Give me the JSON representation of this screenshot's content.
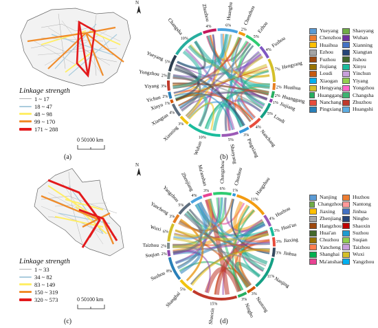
{
  "panels": {
    "a": {
      "label": "(a)"
    },
    "b": {
      "label": "(b)"
    },
    "c": {
      "label": "(c)"
    },
    "d": {
      "label": "(d)"
    }
  },
  "north_label": "N",
  "scale_bar": {
    "text": "0  50100 km"
  },
  "legend_a": {
    "title": "Linkage strength",
    "classes": [
      {
        "range": "1 ~ 17",
        "color": "#b0b0b0",
        "width": 1
      },
      {
        "range": "18 ~ 47",
        "color": "#aaccdd",
        "width": 2
      },
      {
        "range": "48 ~ 98",
        "color": "#ffee66",
        "width": 3
      },
      {
        "range": "99 ~ 170",
        "color": "#f08c2a",
        "width": 3
      },
      {
        "range": "171 ~ 288",
        "color": "#e31a1c",
        "width": 4
      }
    ]
  },
  "legend_c": {
    "title": "Linkage strength",
    "classes": [
      {
        "range": "1 ~ 33",
        "color": "#b0b0b0",
        "width": 1
      },
      {
        "range": "34 ~ 82",
        "color": "#aaccdd",
        "width": 2
      },
      {
        "range": "83 ~ 149",
        "color": "#ffee66",
        "width": 3
      },
      {
        "range": "150 ~ 319",
        "color": "#f08c2a",
        "width": 3
      },
      {
        "range": "320 ~ 573",
        "color": "#e31a1c",
        "width": 4
      }
    ]
  },
  "chord_b": {
    "cities": [
      "Zhuzhou",
      "Huanghu",
      "Chenzhou",
      "Ezhou",
      "Fuzhou",
      "Hengyang",
      "Huaihua",
      "Huanggang",
      "Jiujiang",
      "Loudi",
      "Nanchang",
      "Pingxiang",
      "Shaoyang",
      "Wuhan",
      "Xianning",
      "Xiangtan",
      "Xinyu",
      "Yichun",
      "Yiyang",
      "Yongzhou",
      "Yueyang",
      "Changsha"
    ],
    "percents": [
      "4%",
      "6%",
      "2%",
      "5%",
      "4%",
      "7%",
      "2%",
      "2%",
      "1%",
      "5%",
      "4%",
      "3%",
      "5%",
      "10%",
      "3%",
      "4%",
      "1%",
      "2%",
      "3%",
      "2%",
      "5%",
      "10%"
    ],
    "colors": [
      "#c2185b",
      "#4aa3df",
      "#f39c12",
      "#2ecc71",
      "#7e57c2",
      "#d4c02a",
      "#e67e22",
      "#27ae60",
      "#8e44ad",
      "#16a085",
      "#e74c3c",
      "#3498db",
      "#9b59b6",
      "#1abc9c",
      "#f1c40f",
      "#5d6d7e",
      "#d35400",
      "#2980b9",
      "#c0392b",
      "#7f8c8d",
      "#2c3e50",
      "#27ae9f"
    ]
  },
  "chord_d": {
    "cities": [
      "Ma'anshan",
      "Changzhou",
      "Chuzhou",
      "Hangzhou",
      "Huzhou",
      "Huai'an",
      "Jiaxing",
      "Jinhua",
      "Nanjing",
      "Nantong",
      "Ningbo",
      "Shaoxin",
      "Shanghai",
      "Suzhou",
      "Suqian",
      "Taizhou",
      "Wuxi",
      "Yancheng",
      "Yangzhou",
      "Zhenjiang"
    ],
    "percents": [
      "3%",
      "6%",
      "1%",
      "11%",
      "4%",
      "3%",
      "3%",
      "3%",
      "11%",
      "3%",
      "3%",
      "15%",
      "5%",
      "8%",
      "2%",
      "2%",
      "6%",
      "3%",
      "5%",
      "4%"
    ],
    "colors": [
      "#e84393",
      "#2ecc71",
      "#3498db",
      "#f39c12",
      "#9b59b6",
      "#1abc9c",
      "#e74c3c",
      "#34495e",
      "#16a085",
      "#d35400",
      "#27ae60",
      "#c0392b",
      "#f1c40f",
      "#2980b9",
      "#8e44ad",
      "#7f8c8d",
      "#d4c02a",
      "#e67e22",
      "#5d6d7e",
      "#4aa3df"
    ]
  },
  "legend_b": [
    {
      "name": "Yueyang",
      "color": "#5b9bd5"
    },
    {
      "name": "Shaoyang",
      "color": "#70ad47"
    },
    {
      "name": "Chenzhou",
      "color": "#ed7d31"
    },
    {
      "name": "Wuhan",
      "color": "#7030a0"
    },
    {
      "name": "Huaihua",
      "color": "#ffc000"
    },
    {
      "name": "Xianning",
      "color": "#4472c4"
    },
    {
      "name": "Ezhou",
      "color": "#a5a5a5"
    },
    {
      "name": "Xiangtan",
      "color": "#264478"
    },
    {
      "name": "Fuzhou",
      "color": "#9e480e"
    },
    {
      "name": "Jishou",
      "color": "#43682b"
    },
    {
      "name": "Jiujiang",
      "color": "#997300"
    },
    {
      "name": "Xinyu",
      "color": "#1abc9c"
    },
    {
      "name": "Loudi",
      "color": "#c55a11"
    },
    {
      "name": "Yinchun",
      "color": "#c9a0dc"
    },
    {
      "name": "Xiaogan",
      "color": "#00b0f0"
    },
    {
      "name": "Yiyang",
      "color": "#92d050"
    },
    {
      "name": "Hengyang",
      "color": "#d4c02a"
    },
    {
      "name": "Yongzhou",
      "color": "#ff66cc"
    },
    {
      "name": "Huanggang",
      "color": "#27ae60"
    },
    {
      "name": "Changsha",
      "color": "#3cb371"
    },
    {
      "name": "Nanchang",
      "color": "#e74c3c"
    },
    {
      "name": "Zhuzhou",
      "color": "#c0392b"
    },
    {
      "name": "Pingxiang",
      "color": "#2980b9"
    },
    {
      "name": "Huangshi",
      "color": "#5dade2"
    }
  ],
  "legend_d": [
    {
      "name": "Nanjing",
      "color": "#5b9bd5"
    },
    {
      "name": "Huzhou",
      "color": "#ed7d31"
    },
    {
      "name": "Changzhou",
      "color": "#70ad47"
    },
    {
      "name": "Nantong",
      "color": "#ff9999"
    },
    {
      "name": "Jiaxing",
      "color": "#ffc000"
    },
    {
      "name": "Jinhua",
      "color": "#4472c4"
    },
    {
      "name": "Zhenjiang",
      "color": "#a5a5a5"
    },
    {
      "name": "Ningbo",
      "color": "#264478"
    },
    {
      "name": "Hangzhou",
      "color": "#9e480e"
    },
    {
      "name": "Shaoxin",
      "color": "#c00000"
    },
    {
      "name": "Huai'an",
      "color": "#43682b"
    },
    {
      "name": "Suzhou",
      "color": "#1f9bd1"
    },
    {
      "name": "Chuzhou",
      "color": "#997300"
    },
    {
      "name": "Suqian",
      "color": "#92d050"
    },
    {
      "name": "Yancheng",
      "color": "#ff7f50"
    },
    {
      "name": "Taizhou",
      "color": "#c9a0dc"
    },
    {
      "name": "Shanghai",
      "color": "#00b050"
    },
    {
      "name": "Wuxi",
      "color": "#d4c02a"
    },
    {
      "name": "Ma'anshan",
      "color": "#e84393"
    },
    {
      "name": "Yangzhou",
      "color": "#00b0f0"
    }
  ]
}
